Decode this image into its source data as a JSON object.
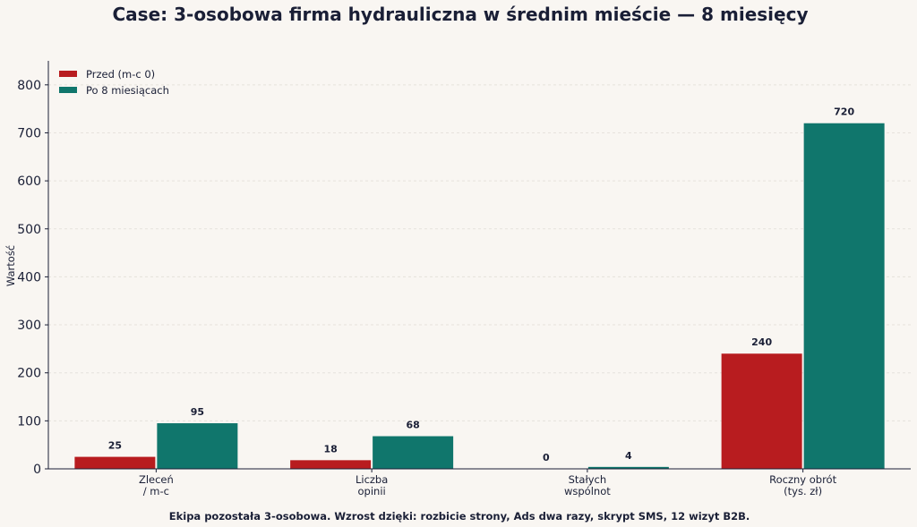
{
  "chart_data": {
    "type": "bar",
    "title": "Case: 3-osobowa firma hydrauliczna w średnim mieście — 8 miesięcy",
    "caption": "Ekipa pozostała 3-osobowa. Wzrost dzięki: rozbicie strony, Ads dwa razy, skrypt SMS, 12 wizyt B2B.",
    "ylabel": "Wartość",
    "xlabel": "",
    "ylim": [
      0,
      850
    ],
    "yticks": [
      0,
      100,
      200,
      300,
      400,
      500,
      600,
      700,
      800
    ],
    "grid": true,
    "legend_position": "top-left",
    "categories": [
      [
        "Zleceń",
        "/ m-c"
      ],
      [
        "Liczba",
        "opinii"
      ],
      [
        "Stałych",
        "wspólnot"
      ],
      [
        "Roczny obrót",
        "(tys. zł)"
      ]
    ],
    "series": [
      {
        "name": "Przed (m-c 0)",
        "color": "#b81c1f",
        "values": [
          25,
          18,
          0,
          240
        ]
      },
      {
        "name": "Po 8 miesiącach",
        "color": "#10766c",
        "values": [
          95,
          68,
          4,
          720
        ]
      }
    ]
  }
}
